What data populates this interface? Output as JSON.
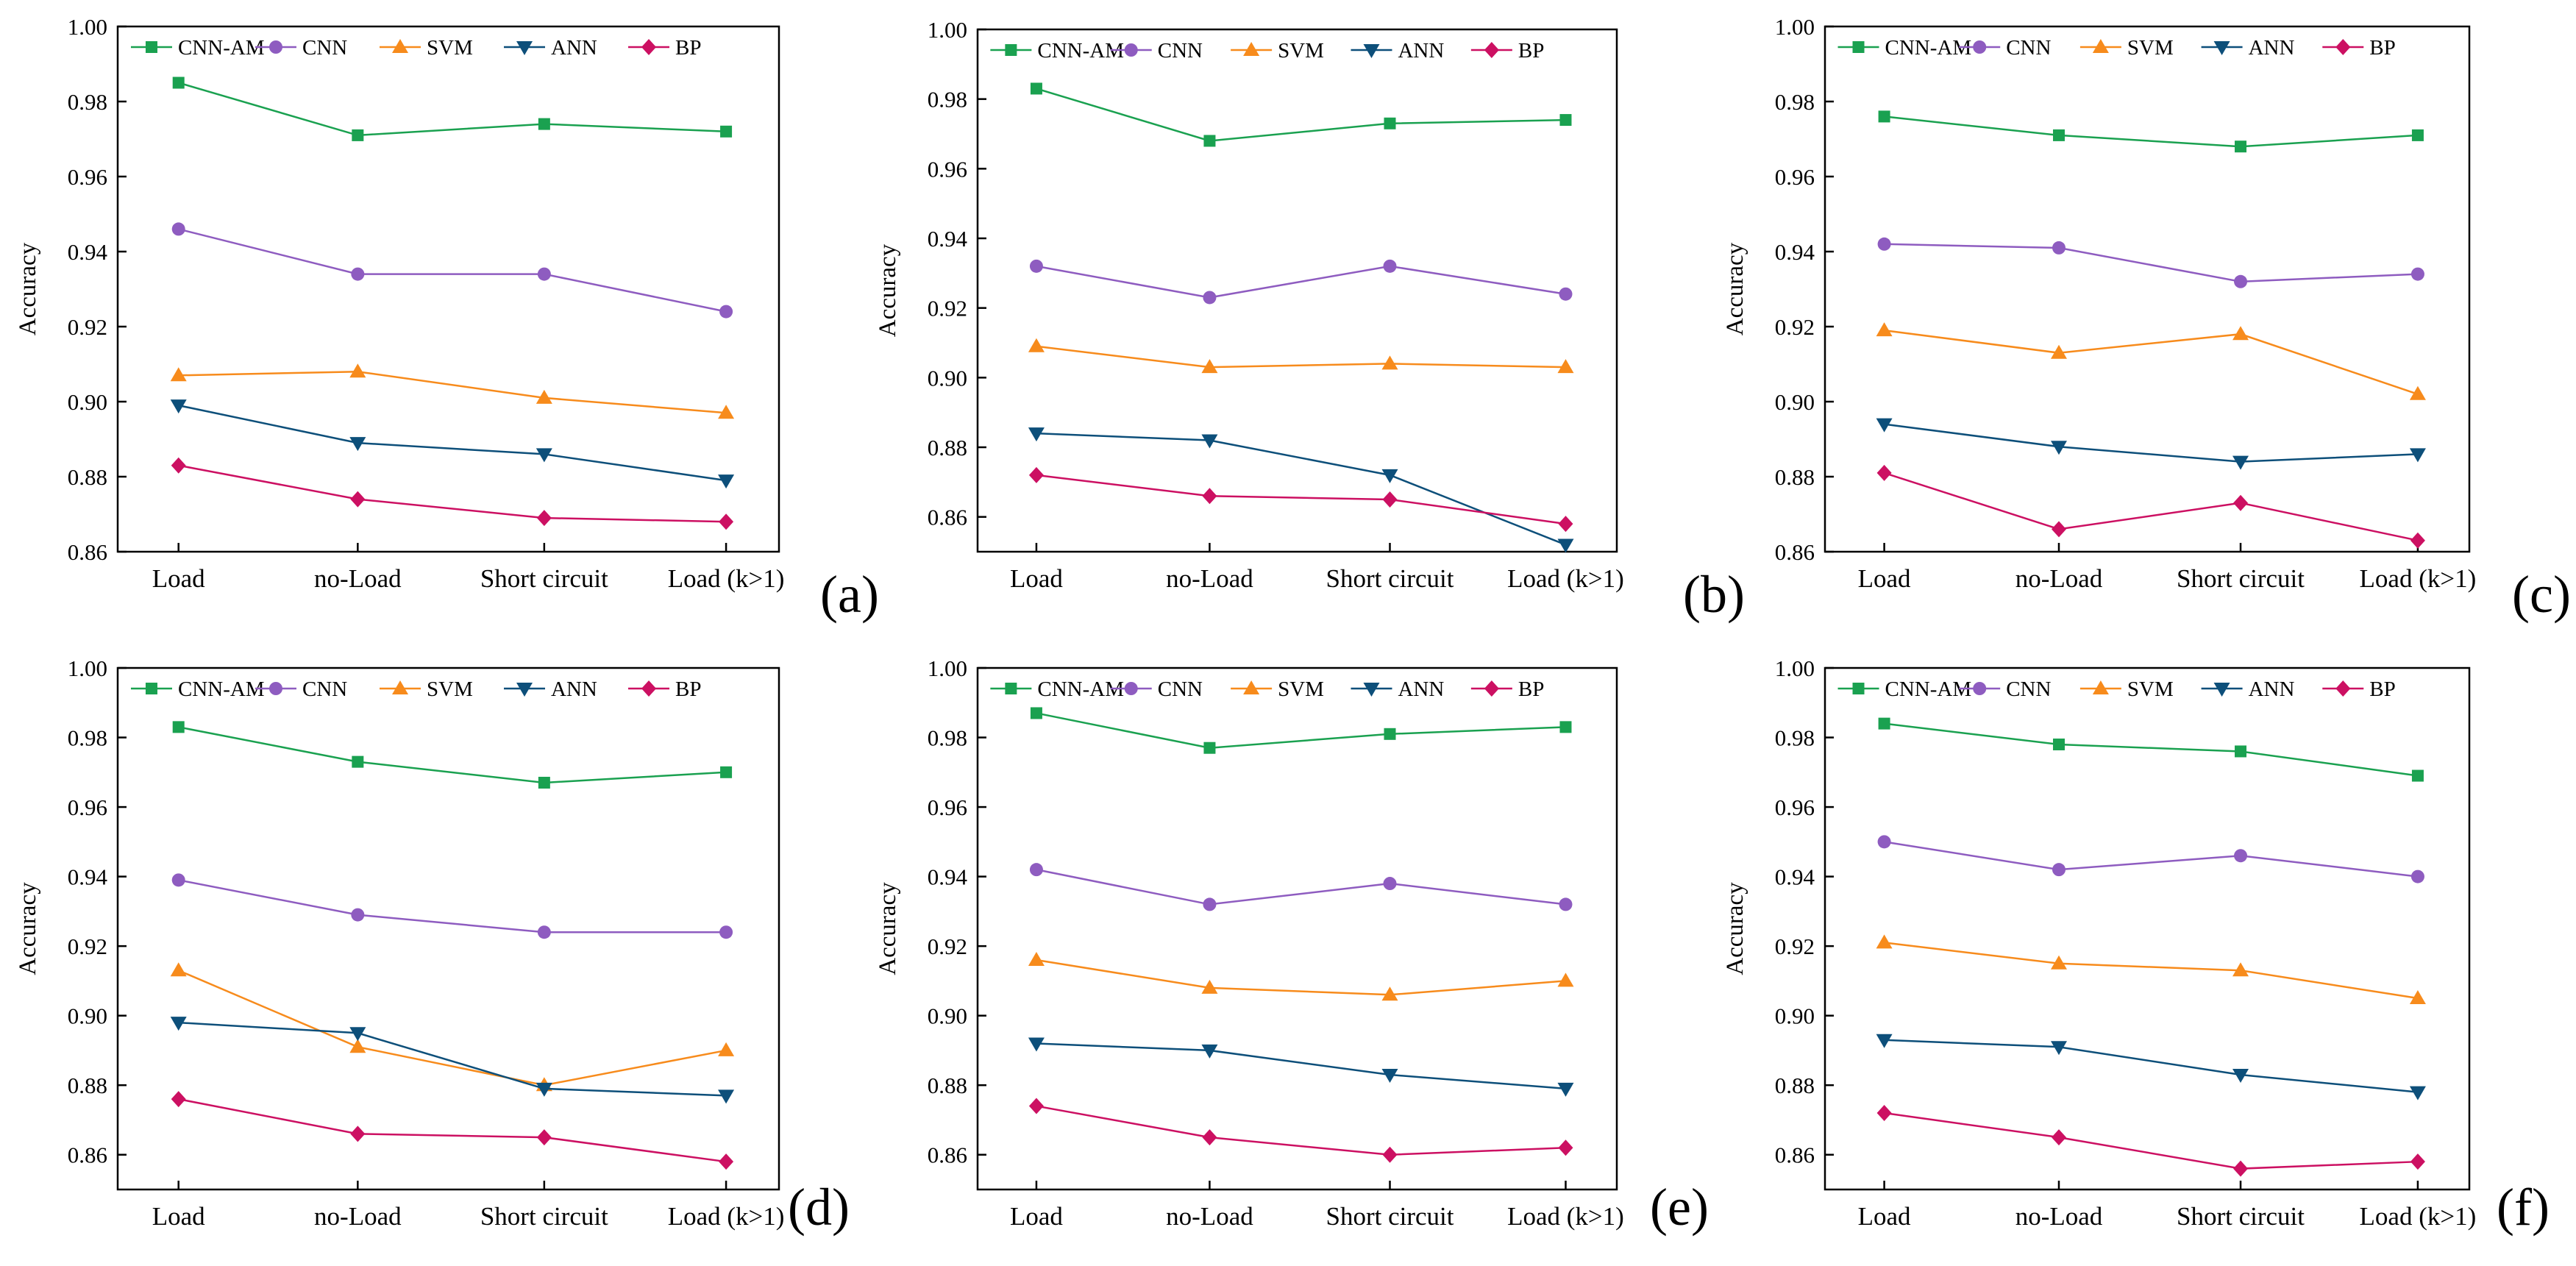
{
  "figure": {
    "panel_labels": [
      "(a)",
      "(b)",
      "(c)",
      "(d)",
      "(e)",
      "(f)"
    ]
  },
  "series_styles": [
    {
      "name": "CNN-AM",
      "color": "#1aa150",
      "marker": "square"
    },
    {
      "name": "CNN",
      "color": "#8e5cc0",
      "marker": "circle"
    },
    {
      "name": "SVM",
      "color": "#f78b1c",
      "marker": "triangle-up"
    },
    {
      "name": "ANN",
      "color": "#0d4f7a",
      "marker": "triangle-down"
    },
    {
      "name": "BP",
      "color": "#cc1062",
      "marker": "diamond"
    }
  ],
  "chart_data": [
    {
      "panel": "(a)",
      "type": "line",
      "categories": [
        "Load",
        "no-Load",
        "Short circuit",
        "Load (k>1)"
      ],
      "ylabel": "Accuracy",
      "ylim": [
        0.86,
        1.0
      ],
      "yticks": [
        "0.86",
        "0.88",
        "0.90",
        "0.92",
        "0.94",
        "0.96",
        "0.98",
        "1.00"
      ],
      "legend_position": "top",
      "series": [
        {
          "name": "CNN-AM",
          "values": [
            0.985,
            0.971,
            0.974,
            0.972
          ]
        },
        {
          "name": "CNN",
          "values": [
            0.946,
            0.934,
            0.934,
            0.924
          ]
        },
        {
          "name": "SVM",
          "values": [
            0.907,
            0.908,
            0.901,
            0.897
          ]
        },
        {
          "name": "ANN",
          "values": [
            0.899,
            0.889,
            0.886,
            0.879
          ]
        },
        {
          "name": "BP",
          "values": [
            0.883,
            0.874,
            0.869,
            0.868
          ]
        }
      ]
    },
    {
      "panel": "(b)",
      "type": "line",
      "categories": [
        "Load",
        "no-Load",
        "Short circuit",
        "Load (k>1)"
      ],
      "ylabel": "Accuracy",
      "ylim": [
        0.85,
        1.0
      ],
      "yticks": [
        "0.86",
        "0.88",
        "0.90",
        "0.92",
        "0.94",
        "0.96",
        "0.98",
        "1.00"
      ],
      "legend_position": "top",
      "series": [
        {
          "name": "CNN-AM",
          "values": [
            0.983,
            0.968,
            0.973,
            0.974
          ]
        },
        {
          "name": "CNN",
          "values": [
            0.932,
            0.923,
            0.932,
            0.924
          ]
        },
        {
          "name": "SVM",
          "values": [
            0.909,
            0.903,
            0.904,
            0.903
          ]
        },
        {
          "name": "ANN",
          "values": [
            0.884,
            0.882,
            0.872,
            0.852
          ]
        },
        {
          "name": "BP",
          "values": [
            0.872,
            0.866,
            0.865,
            0.858
          ]
        }
      ]
    },
    {
      "panel": "(c)",
      "type": "line",
      "categories": [
        "Load",
        "no-Load",
        "Short circuit",
        "Load (k>1)"
      ],
      "ylabel": "Accuracy",
      "ylim": [
        0.86,
        1.0
      ],
      "yticks": [
        "0.86",
        "0.88",
        "0.90",
        "0.92",
        "0.94",
        "0.96",
        "0.98",
        "1.00"
      ],
      "legend_position": "top",
      "series": [
        {
          "name": "CNN-AM",
          "values": [
            0.976,
            0.971,
            0.968,
            0.971
          ]
        },
        {
          "name": "CNN",
          "values": [
            0.942,
            0.941,
            0.932,
            0.934
          ]
        },
        {
          "name": "SVM",
          "values": [
            0.919,
            0.913,
            0.918,
            0.902
          ]
        },
        {
          "name": "ANN",
          "values": [
            0.894,
            0.888,
            0.884,
            0.886
          ]
        },
        {
          "name": "BP",
          "values": [
            0.881,
            0.866,
            0.873,
            0.863
          ]
        }
      ]
    },
    {
      "panel": "(d)",
      "type": "line",
      "categories": [
        "Load",
        "no-Load",
        "Short circuit",
        "Load (k>1)"
      ],
      "ylabel": "Accuracy",
      "ylim": [
        0.85,
        1.0
      ],
      "yticks": [
        "0.86",
        "0.88",
        "0.90",
        "0.92",
        "0.94",
        "0.96",
        "0.98",
        "1.00"
      ],
      "legend_position": "top",
      "series": [
        {
          "name": "CNN-AM",
          "values": [
            0.983,
            0.973,
            0.967,
            0.97
          ]
        },
        {
          "name": "CNN",
          "values": [
            0.939,
            0.929,
            0.924,
            0.924
          ]
        },
        {
          "name": "SVM",
          "values": [
            0.913,
            0.891,
            0.88,
            0.89
          ]
        },
        {
          "name": "ANN",
          "values": [
            0.898,
            0.895,
            0.879,
            0.877
          ]
        },
        {
          "name": "BP",
          "values": [
            0.876,
            0.866,
            0.865,
            0.858
          ]
        }
      ]
    },
    {
      "panel": "(e)",
      "type": "line",
      "categories": [
        "Load",
        "no-Load",
        "Short circuit",
        "Load (k>1)"
      ],
      "ylabel": "Accuracy",
      "ylim": [
        0.85,
        1.0
      ],
      "yticks": [
        "0.86",
        "0.88",
        "0.90",
        "0.92",
        "0.94",
        "0.96",
        "0.98",
        "1.00"
      ],
      "legend_position": "top",
      "series": [
        {
          "name": "CNN-AM",
          "values": [
            0.987,
            0.977,
            0.981,
            0.983
          ]
        },
        {
          "name": "CNN",
          "values": [
            0.942,
            0.932,
            0.938,
            0.932
          ]
        },
        {
          "name": "SVM",
          "values": [
            0.916,
            0.908,
            0.906,
            0.91
          ]
        },
        {
          "name": "ANN",
          "values": [
            0.892,
            0.89,
            0.883,
            0.879
          ]
        },
        {
          "name": "BP",
          "values": [
            0.874,
            0.865,
            0.86,
            0.862
          ]
        }
      ]
    },
    {
      "panel": "(f)",
      "type": "line",
      "categories": [
        "Load",
        "no-Load",
        "Short circuit",
        "Load (k>1)"
      ],
      "ylabel": "Accuracy",
      "ylim": [
        0.85,
        1.0
      ],
      "yticks": [
        "0.86",
        "0.88",
        "0.90",
        "0.92",
        "0.94",
        "0.96",
        "0.98",
        "1.00"
      ],
      "legend_position": "top",
      "series": [
        {
          "name": "CNN-AM",
          "values": [
            0.984,
            0.978,
            0.976,
            0.969
          ]
        },
        {
          "name": "CNN",
          "values": [
            0.95,
            0.942,
            0.946,
            0.94
          ]
        },
        {
          "name": "SVM",
          "values": [
            0.921,
            0.915,
            0.913,
            0.905
          ]
        },
        {
          "name": "ANN",
          "values": [
            0.893,
            0.891,
            0.883,
            0.878
          ]
        },
        {
          "name": "BP",
          "values": [
            0.872,
            0.865,
            0.856,
            0.858
          ]
        }
      ]
    }
  ]
}
